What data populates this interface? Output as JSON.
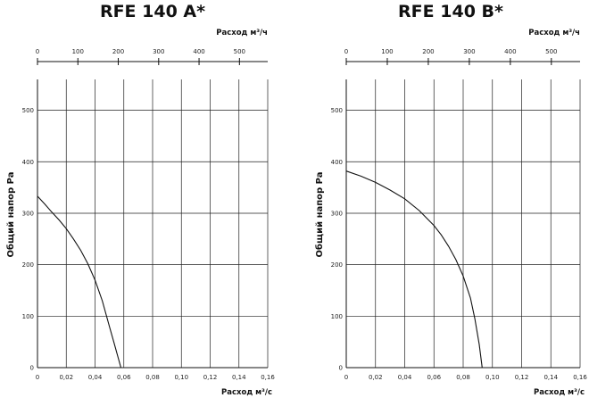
{
  "chart_data": [
    {
      "type": "line",
      "title": "RFE 140 A*",
      "xlabel": "Расход м³/с",
      "ylabel": "Общий напор Pa",
      "top_label": "Расход м³/ч",
      "xlim": [
        0,
        0.16
      ],
      "ylim": [
        0,
        560
      ],
      "x_ticks": [
        "0",
        "0,02",
        "0,04",
        "0,06",
        "0,08",
        "0,10",
        "0,12",
        "0,14",
        "0,16"
      ],
      "x_tick_values": [
        0,
        0.02,
        0.04,
        0.06,
        0.08,
        0.1,
        0.12,
        0.14,
        0.16
      ],
      "y_ticks": [
        "0",
        "100",
        "200",
        "300",
        "400",
        "500"
      ],
      "y_tick_values": [
        0,
        100,
        200,
        300,
        400,
        500
      ],
      "top_ticks": [
        "0",
        "100",
        "200",
        "300",
        "400",
        "500"
      ],
      "top_tick_values": [
        0,
        100,
        200,
        300,
        400,
        500
      ],
      "grid": true,
      "series": [
        {
          "x": [
            0,
            0.005,
            0.01,
            0.015,
            0.02,
            0.025,
            0.03,
            0.035,
            0.04,
            0.045,
            0.05,
            0.053,
            0.056,
            0.058
          ],
          "values": [
            333,
            318,
            302,
            287,
            270,
            250,
            228,
            202,
            170,
            130,
            80,
            50,
            20,
            0
          ]
        }
      ]
    },
    {
      "type": "line",
      "title": "RFE 140 B*",
      "xlabel": "Расход м³/с",
      "ylabel": "Общий напор Pa",
      "top_label": "Расход м³/ч",
      "xlim": [
        0,
        0.16
      ],
      "ylim": [
        0,
        560
      ],
      "x_ticks": [
        "0",
        "0,02",
        "0,04",
        "0,06",
        "0,08",
        "0,10",
        "0,12",
        "0,14",
        "0,16"
      ],
      "x_tick_values": [
        0,
        0.02,
        0.04,
        0.06,
        0.08,
        0.1,
        0.12,
        0.14,
        0.16
      ],
      "y_ticks": [
        "0",
        "100",
        "200",
        "300",
        "400",
        "500"
      ],
      "y_tick_values": [
        0,
        100,
        200,
        300,
        400,
        500
      ],
      "top_ticks": [
        "0",
        "100",
        "200",
        "300",
        "400",
        "500"
      ],
      "top_tick_values": [
        0,
        100,
        200,
        300,
        400,
        500
      ],
      "grid": true,
      "series": [
        {
          "x": [
            0,
            0.01,
            0.02,
            0.03,
            0.04,
            0.05,
            0.06,
            0.065,
            0.07,
            0.075,
            0.08,
            0.085,
            0.088,
            0.091,
            0.093
          ],
          "values": [
            382,
            372,
            360,
            345,
            328,
            305,
            276,
            258,
            236,
            210,
            178,
            135,
            95,
            45,
            0
          ]
        }
      ]
    }
  ]
}
